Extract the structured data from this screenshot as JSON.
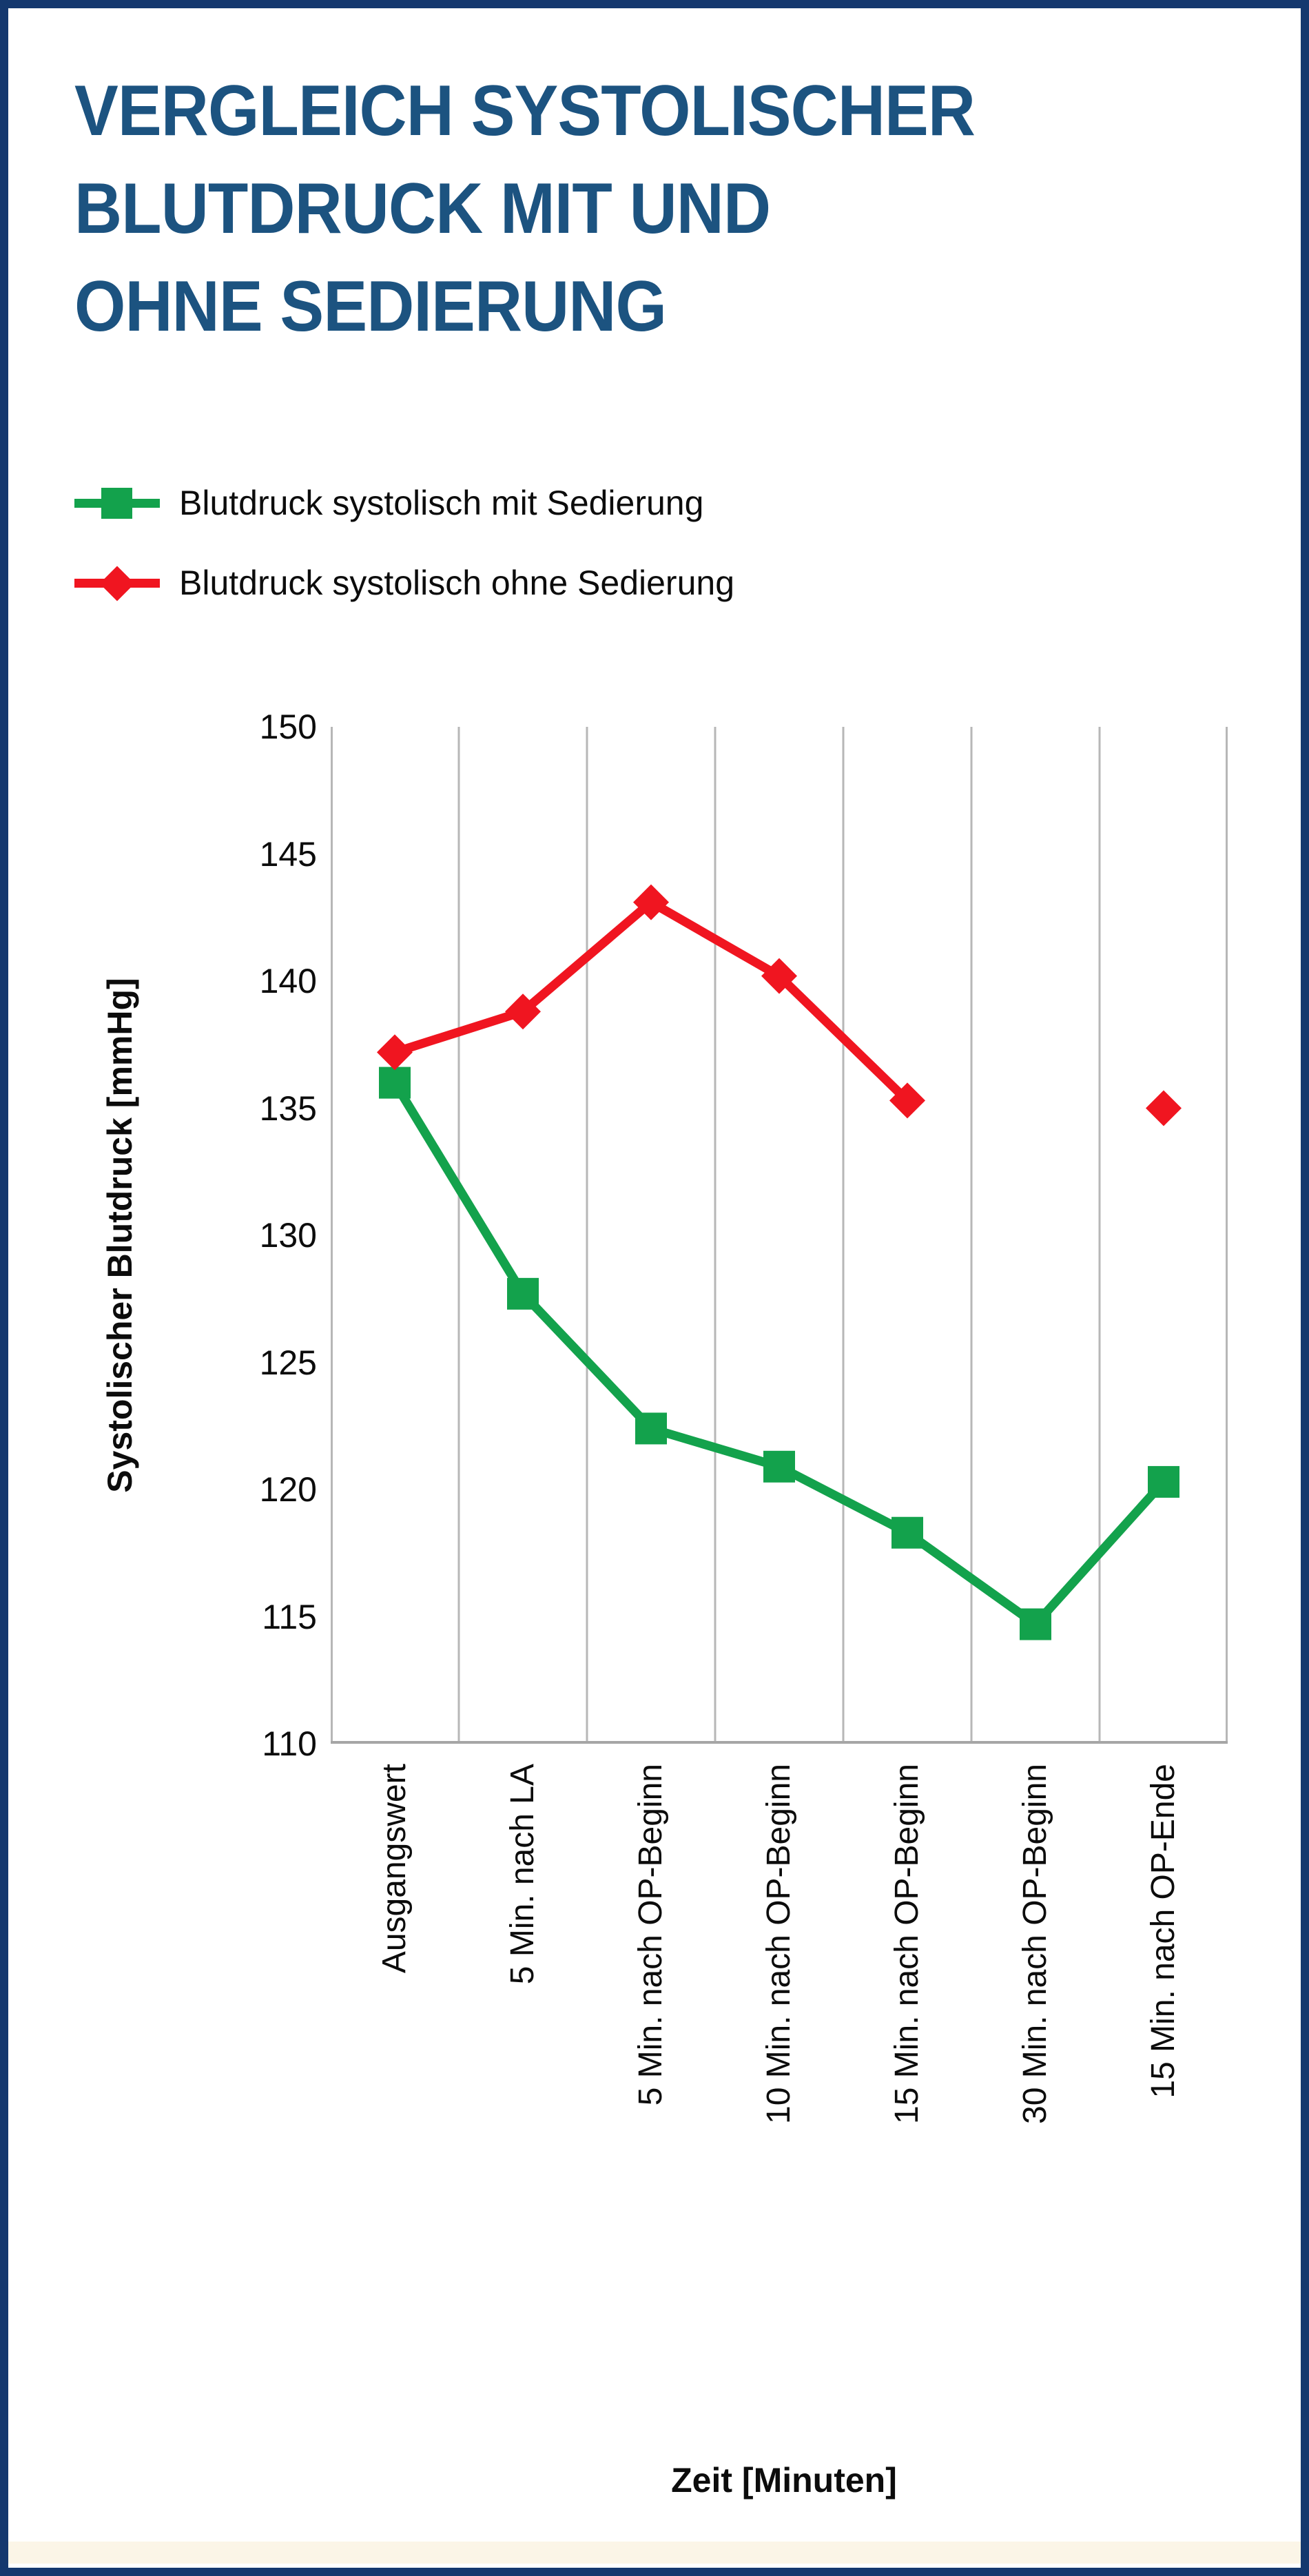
{
  "page": {
    "border_color": "#14386E",
    "background": "#FFFFFF",
    "bottom_strip_color": "#FBF5E7"
  },
  "header": {
    "title_lines": [
      "VERGLEICH SYSTOLISCHER",
      "BLUTDRUCK MIT UND",
      "OHNE SEDIERUNG"
    ],
    "title_color": "#1C5380"
  },
  "legend": {
    "items": [
      {
        "label": "Blutdruck systolisch mit Sedierung",
        "color": "#13A24C",
        "marker": "square"
      },
      {
        "label": "Blutdruck systolisch ohne Sedierung",
        "color": "#F01520",
        "marker": "diamond"
      }
    ]
  },
  "chart_data": {
    "type": "line",
    "title": "Vergleich systolischer Blutdruck mit und ohne Sedierung",
    "categories": [
      "Ausgangswert",
      "5 Min. nach LA",
      "5 Min. nach OP-Beginn",
      "10 Min. nach OP-Beginn",
      "15 Min. nach OP-Beginn",
      "30 Min. nach OP-Beginn",
      "15 Min. nach OP-Ende"
    ],
    "series": [
      {
        "name": "Blutdruck systolisch mit Sedierung",
        "color": "#13A24C",
        "marker": "square",
        "values": [
          136.0,
          127.7,
          122.4,
          120.9,
          118.3,
          114.7,
          120.3
        ]
      },
      {
        "name": "Blutdruck systolisch ohne Sedierung",
        "color": "#F01520",
        "marker": "diamond",
        "values": [
          137.2,
          138.8,
          143.1,
          140.2,
          135.3,
          null,
          135.0
        ]
      }
    ],
    "xlabel": "Zeit [Minuten]",
    "ylabel": "Systolischer Blutdruck [mmHg]",
    "ylim": [
      110,
      150
    ],
    "yticks": [
      150,
      145,
      140,
      135,
      130,
      125,
      120,
      115,
      110
    ],
    "grid": "vertical",
    "gridline_color": "#B7B7B7",
    "axisline_color": "#A6A6A6",
    "legend_position": "top-left"
  }
}
